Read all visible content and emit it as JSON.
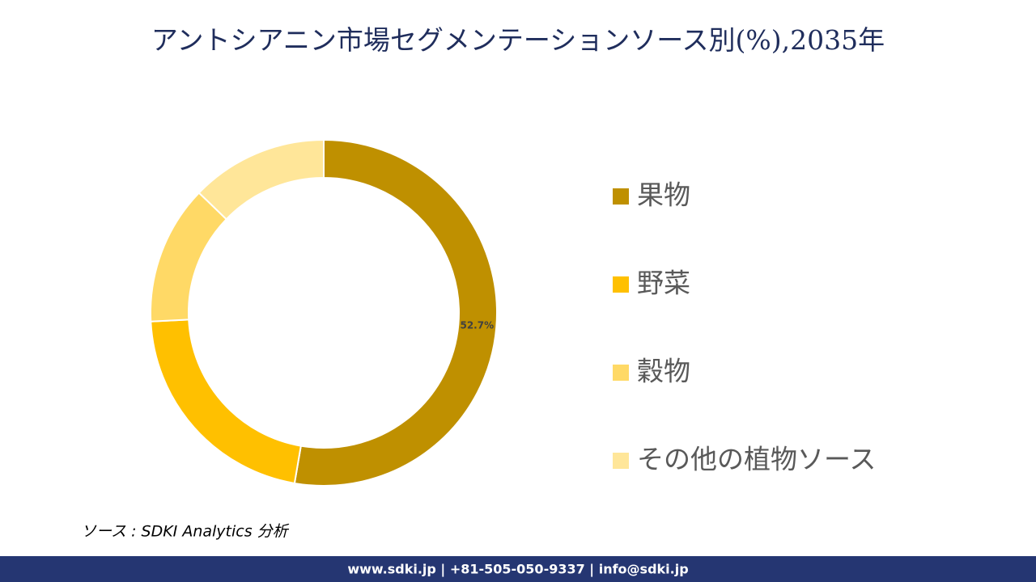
{
  "chart_data": {
    "type": "donut",
    "title": "アントシアニン市場セグメンテーションソース別(%),2035年",
    "categories": [
      "果物",
      "野菜",
      "穀物",
      "その他の植物ソース"
    ],
    "values": [
      52.7,
      21.5,
      13,
      12.8
    ],
    "value_labels": [
      "52.7%",
      null,
      null,
      null
    ],
    "colors": [
      "#bf9000",
      "#ffc000",
      "#ffd966",
      "#ffe699"
    ],
    "legend": "right"
  },
  "source": "ソース : SDKI Analytics 分析",
  "footer": "www.sdki.jp | +81-505-050-9337 | info@sdki.jp"
}
